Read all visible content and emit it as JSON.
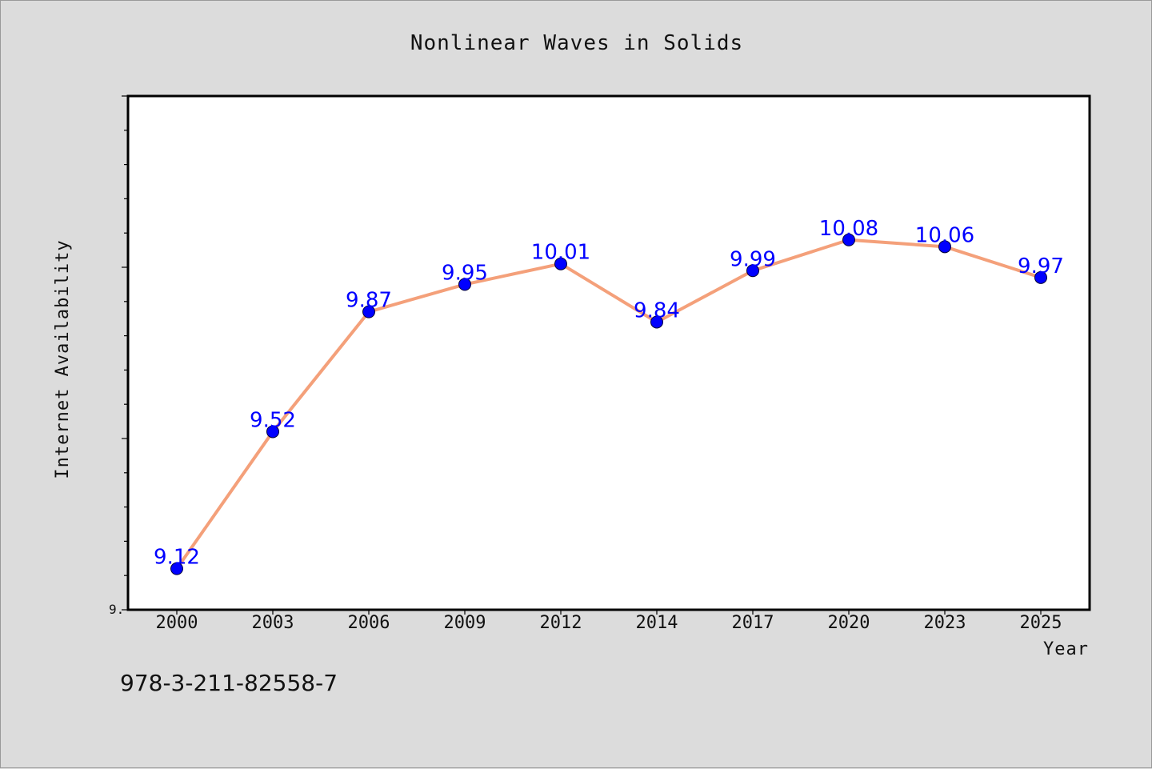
{
  "chart_data": {
    "type": "line",
    "title": "Nonlinear Waves in Solids",
    "xlabel": "Year",
    "ylabel": "Internet Availability",
    "categories": [
      "2000",
      "2003",
      "2006",
      "2009",
      "2012",
      "2014",
      "2017",
      "2020",
      "2023",
      "2025"
    ],
    "series": [
      {
        "values": [
          9.12,
          9.52,
          9.87,
          9.95,
          10.01,
          9.84,
          9.99,
          10.08,
          10.06,
          9.97
        ],
        "line_color": "#f4a07a",
        "marker_color": "#0000ff",
        "label_color": "#0000ff"
      }
    ],
    "ylim": [
      9.0,
      10.5
    ],
    "y_tick_label_visible": "9.",
    "grid": false,
    "legend": "none"
  },
  "footnote": "978-3-211-82558-7",
  "colors": {
    "background": "#dcdcdc",
    "plot_background": "#ffffff",
    "axes": "#000000"
  }
}
